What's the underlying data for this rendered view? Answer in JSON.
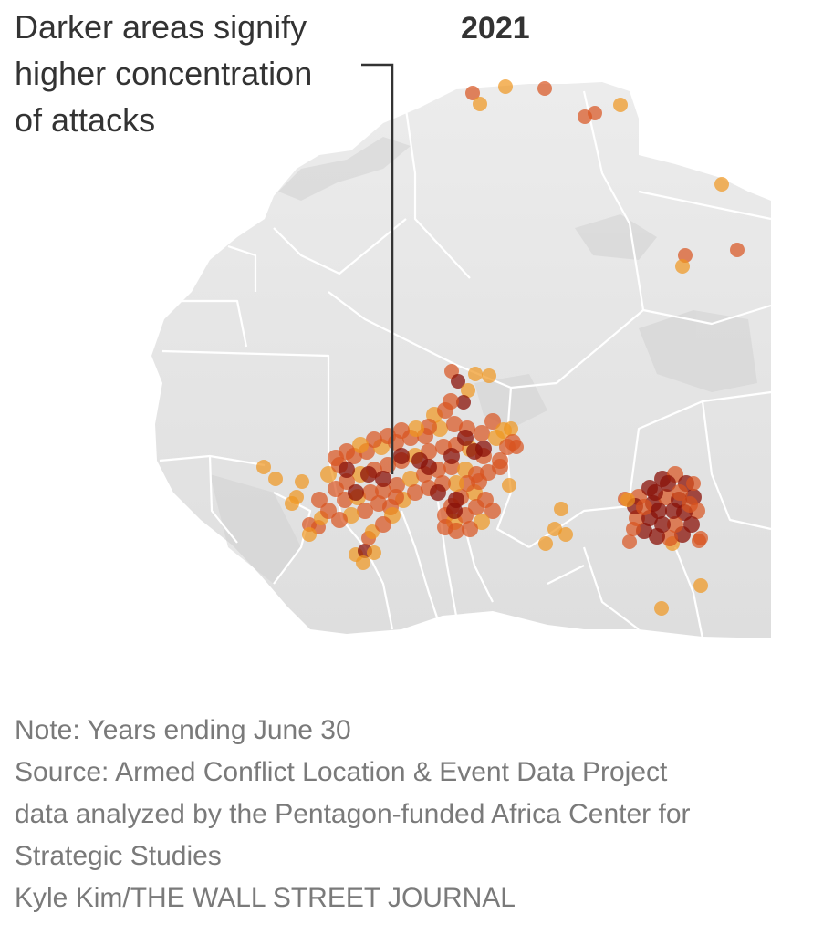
{
  "figure": {
    "year": "2021",
    "annotation_lines": [
      "Darker areas signify",
      "higher concentration",
      "of attacks"
    ],
    "footer": {
      "note": "Note: Years ending June 30",
      "source_line1": "Source: Armed Conflict Location & Event Data Project",
      "source_line2": "data analyzed by the Pentagon-funded Africa Center for",
      "source_line3": "Strategic Studies",
      "credit": "Kyle Kim/THE WALL STREET JOURNAL"
    }
  },
  "colors": {
    "land": "#e6e6e6",
    "border": "#ffffff",
    "attack_light": "#f0961e",
    "attack_mid": "#d9531e",
    "attack_dark": "#8a1208",
    "text": "#333333",
    "footer_text": "#7a7a7a"
  }
}
